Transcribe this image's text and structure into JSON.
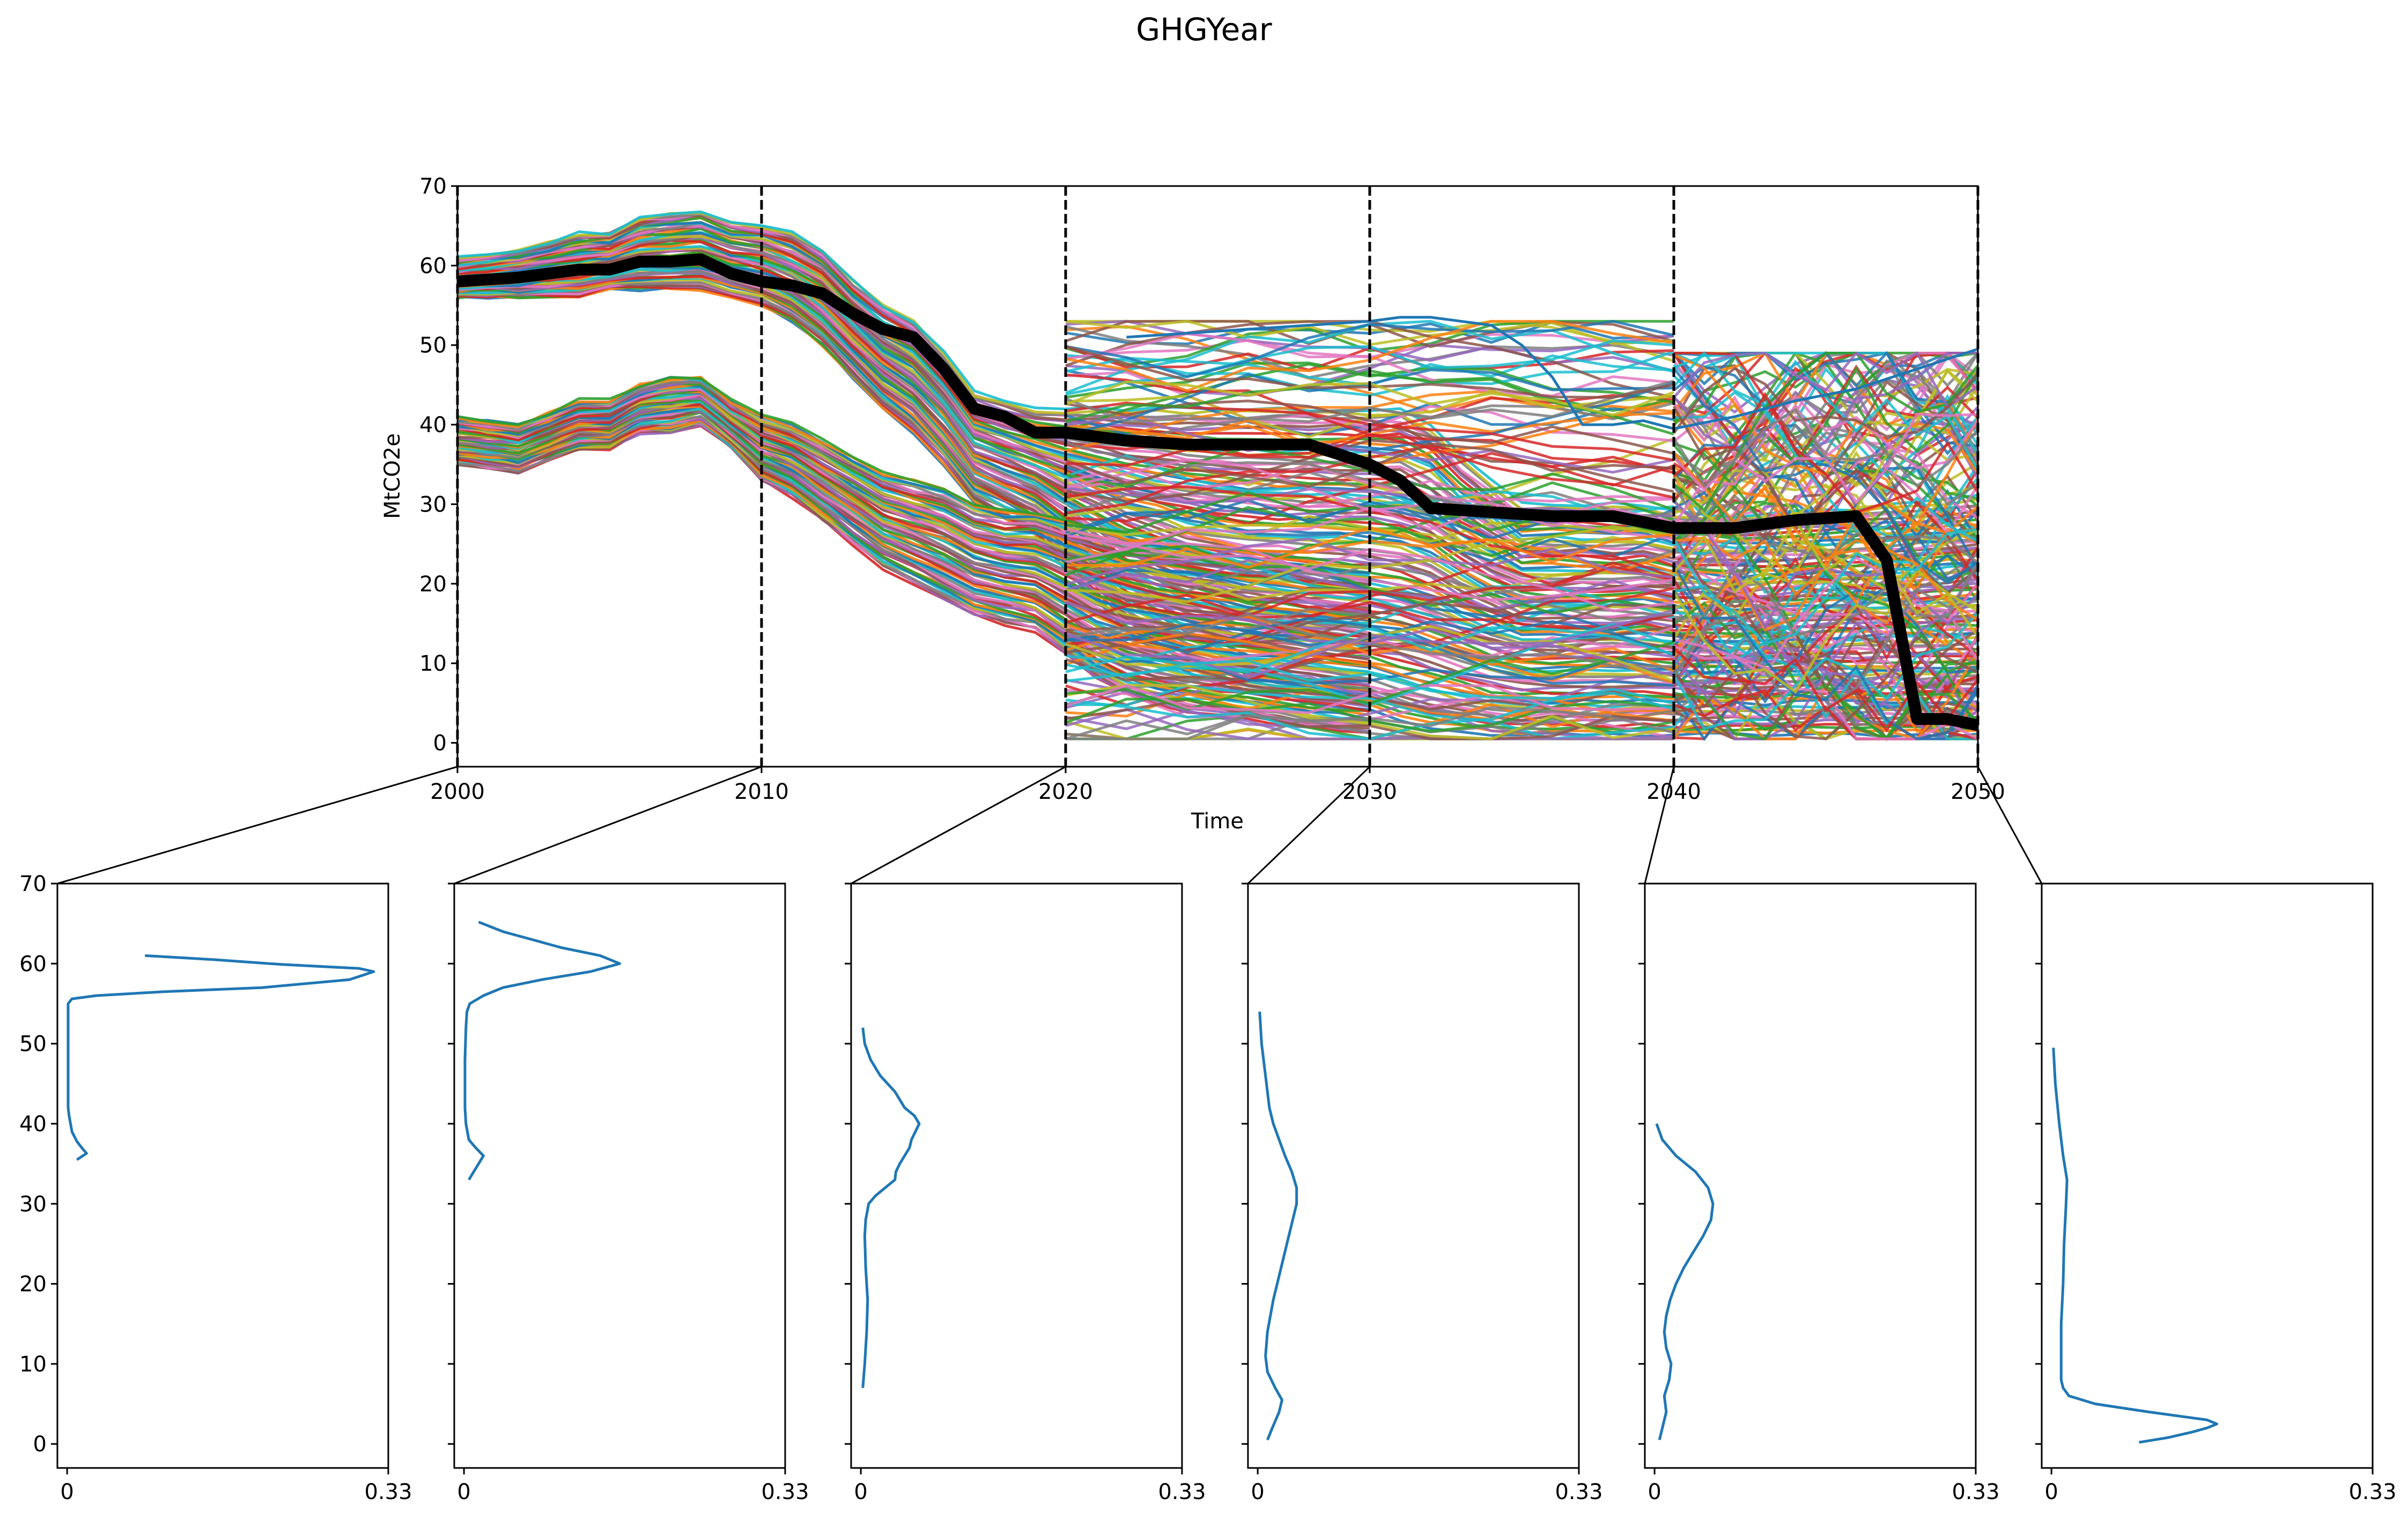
{
  "title": "GHGYear",
  "main": {
    "type": "line",
    "xlabel": "Time",
    "ylabel": "MtCO2e",
    "xlim": [
      2000,
      2050
    ],
    "ylim": [
      -3,
      70
    ],
    "xticks": [
      2000,
      2010,
      2020,
      2030,
      2040,
      2050
    ],
    "yticks": [
      0,
      10,
      20,
      30,
      40,
      50,
      60,
      70
    ],
    "vlines": [
      2000,
      2010,
      2020,
      2030,
      2040,
      2050
    ],
    "bands": [
      {
        "name": "upper",
        "years": [
          2000,
          2002,
          2004,
          2005,
          2006,
          2007,
          2008,
          2009,
          2010,
          2011,
          2012,
          2013,
          2014,
          2015,
          2016,
          2017,
          2018,
          2019,
          2020,
          2022,
          2024,
          2026,
          2028,
          2030,
          2031,
          2032,
          2033,
          2034,
          2035,
          2036,
          2037,
          2038,
          2039,
          2040,
          2042,
          2044,
          2046,
          2048,
          2050
        ],
        "hi": [
          61,
          62,
          64,
          64,
          66,
          66.5,
          67,
          65.5,
          65,
          64,
          62,
          58,
          55,
          53,
          49,
          44,
          43,
          42,
          42,
          42,
          42,
          42,
          42,
          42,
          42,
          40,
          36,
          33,
          30,
          30,
          30,
          30,
          30,
          29,
          28.5,
          29,
          29.5,
          30,
          31
        ],
        "lo": [
          56,
          56,
          56,
          57,
          57,
          57,
          57,
          56,
          55,
          53,
          50,
          46,
          42,
          39,
          35,
          30,
          28,
          26,
          22,
          14,
          9,
          6,
          5,
          4,
          3,
          2,
          1.5,
          1,
          1,
          1,
          1,
          1,
          1,
          1,
          1,
          1,
          1,
          1,
          1
        ]
      },
      {
        "name": "lower",
        "years": [
          2000,
          2002,
          2004,
          2005,
          2006,
          2007,
          2008,
          2009,
          2010,
          2011,
          2012,
          2013,
          2014,
          2015,
          2016,
          2017,
          2018,
          2019,
          2020,
          2021,
          2022,
          2024,
          2026,
          2028,
          2030
        ],
        "hi": [
          41,
          40,
          43,
          43,
          45,
          46,
          46,
          43,
          41,
          40,
          38,
          36,
          34,
          33,
          32,
          30,
          29,
          29,
          28,
          27,
          26,
          25,
          24,
          23,
          22
        ],
        "lo": [
          35,
          34,
          37,
          37,
          39,
          39,
          40,
          37,
          33,
          31,
          28,
          25,
          22,
          20,
          18,
          16,
          15,
          14,
          11,
          8,
          6,
          4,
          3,
          2,
          1
        ]
      }
    ],
    "noise_bands": [
      {
        "x0": 2020,
        "x1": 2040,
        "lo": 0.5,
        "hi": 53,
        "lines": 120
      },
      {
        "x0": 2040,
        "x1": 2050,
        "lo": 0.5,
        "hi": 49,
        "lines": 150
      }
    ],
    "edges": [
      {
        "years": [
          2022,
          2024,
          2026,
          2028,
          2030,
          2031,
          2032,
          2033,
          2034,
          2035,
          2036,
          2037,
          2038,
          2039,
          2040,
          2042,
          2044,
          2046,
          2048,
          2050
        ],
        "values": [
          51,
          51.5,
          52,
          52.5,
          53,
          53.5,
          53.5,
          53,
          52.5,
          50,
          46,
          40,
          40,
          40.5,
          39.5,
          41,
          43,
          44.5,
          47,
          49.5
        ],
        "color": "#1f77b4"
      }
    ],
    "median": {
      "years": [
        2000,
        2002,
        2004,
        2005,
        2006,
        2007,
        2008,
        2009,
        2010,
        2011,
        2012,
        2013,
        2014,
        2015,
        2016,
        2017,
        2018,
        2019,
        2020,
        2022,
        2024,
        2026,
        2028,
        2030,
        2031,
        2032,
        2034,
        2036,
        2038,
        2040,
        2042,
        2044,
        2046,
        2047,
        2048,
        2049,
        2050
      ],
      "values": [
        58,
        58.5,
        59.5,
        59.5,
        60.5,
        60.5,
        60.8,
        59,
        58,
        57.5,
        56.5,
        54,
        52,
        51,
        47,
        42,
        41,
        39,
        39,
        38,
        37.5,
        37.5,
        37.5,
        35,
        33,
        29.5,
        29,
        28.5,
        28.5,
        27,
        27,
        28,
        28.5,
        23,
        3,
        3,
        2.2
      ],
      "color": "#000000"
    },
    "palette": [
      "#1f77b4",
      "#ff7f0e",
      "#2ca02c",
      "#d62728",
      "#9467bd",
      "#8c564b",
      "#e377c2",
      "#7f7f7f",
      "#bcbd22",
      "#17becf"
    ]
  },
  "densities": {
    "xlim": [
      -0.01,
      0.33
    ],
    "ylim": [
      -3,
      70
    ],
    "xticks": [
      "0",
      "0.33"
    ],
    "yticks": [
      0,
      10,
      20,
      30,
      40,
      50,
      60,
      70
    ],
    "line_color": "#1f77b4",
    "panels": [
      {
        "year": 2000,
        "y": [
          35.5,
          36.3,
          37,
          37.8,
          39,
          41,
          42,
          44,
          50,
          55,
          55.6,
          56,
          56.5,
          57,
          58,
          59,
          59.4,
          59.9,
          60.5,
          61
        ],
        "d": [
          0.01,
          0.02,
          0.015,
          0.01,
          0.005,
          0.002,
          0.001,
          0.001,
          0.001,
          0.001,
          0.005,
          0.03,
          0.1,
          0.2,
          0.29,
          0.315,
          0.3,
          0.22,
          0.15,
          0.08
        ]
      },
      {
        "year": 2010,
        "y": [
          33,
          34,
          35,
          36,
          37,
          38,
          40,
          42,
          44,
          48,
          52,
          54,
          55,
          56,
          57,
          58,
          59,
          60,
          61,
          62,
          63,
          64,
          65.2
        ],
        "d": [
          0.005,
          0.01,
          0.015,
          0.02,
          0.012,
          0.005,
          0.002,
          0.001,
          0.001,
          0.001,
          0.002,
          0.003,
          0.006,
          0.02,
          0.04,
          0.08,
          0.13,
          0.16,
          0.14,
          0.1,
          0.07,
          0.04,
          0.015
        ]
      },
      {
        "year": 2020,
        "y": [
          7,
          10,
          14,
          18,
          22,
          26,
          28,
          30,
          31,
          32,
          33,
          34,
          35,
          36,
          37,
          38,
          39,
          40,
          41,
          42,
          44,
          46,
          48,
          50,
          52
        ],
        "d": [
          0.002,
          0.004,
          0.006,
          0.007,
          0.005,
          0.004,
          0.005,
          0.008,
          0.015,
          0.025,
          0.035,
          0.036,
          0.04,
          0.045,
          0.05,
          0.052,
          0.056,
          0.06,
          0.055,
          0.045,
          0.035,
          0.02,
          0.01,
          0.004,
          0.002
        ]
      },
      {
        "year": 2030,
        "y": [
          0.5,
          2,
          4,
          5.5,
          7,
          9,
          11,
          14,
          18,
          22,
          26,
          30,
          32,
          34,
          36,
          38,
          40,
          42,
          46,
          50,
          54
        ],
        "d": [
          0.01,
          0.015,
          0.022,
          0.025,
          0.018,
          0.01,
          0.008,
          0.01,
          0.016,
          0.024,
          0.032,
          0.04,
          0.04,
          0.035,
          0.028,
          0.022,
          0.016,
          0.012,
          0.008,
          0.004,
          0.002
        ]
      },
      {
        "year": 2040,
        "y": [
          0.5,
          2,
          4,
          6,
          8,
          10,
          12,
          14,
          16,
          18,
          20,
          22,
          24,
          26,
          28,
          30,
          32,
          34,
          36,
          38,
          40
        ],
        "d": [
          0.005,
          0.008,
          0.012,
          0.01,
          0.015,
          0.017,
          0.012,
          0.01,
          0.012,
          0.016,
          0.022,
          0.03,
          0.04,
          0.05,
          0.058,
          0.06,
          0.055,
          0.042,
          0.022,
          0.008,
          0.002
        ]
      },
      {
        "year": 2050,
        "y": [
          0.2,
          0.8,
          1.5,
          2,
          2.5,
          3,
          4,
          5,
          6,
          7,
          8,
          10,
          15,
          20,
          25,
          30,
          33,
          36,
          40,
          45,
          49.5
        ],
        "d": [
          0.09,
          0.12,
          0.145,
          0.16,
          0.17,
          0.16,
          0.1,
          0.045,
          0.018,
          0.012,
          0.01,
          0.01,
          0.01,
          0.012,
          0.013,
          0.015,
          0.016,
          0.012,
          0.008,
          0.004,
          0.002
        ]
      }
    ]
  }
}
